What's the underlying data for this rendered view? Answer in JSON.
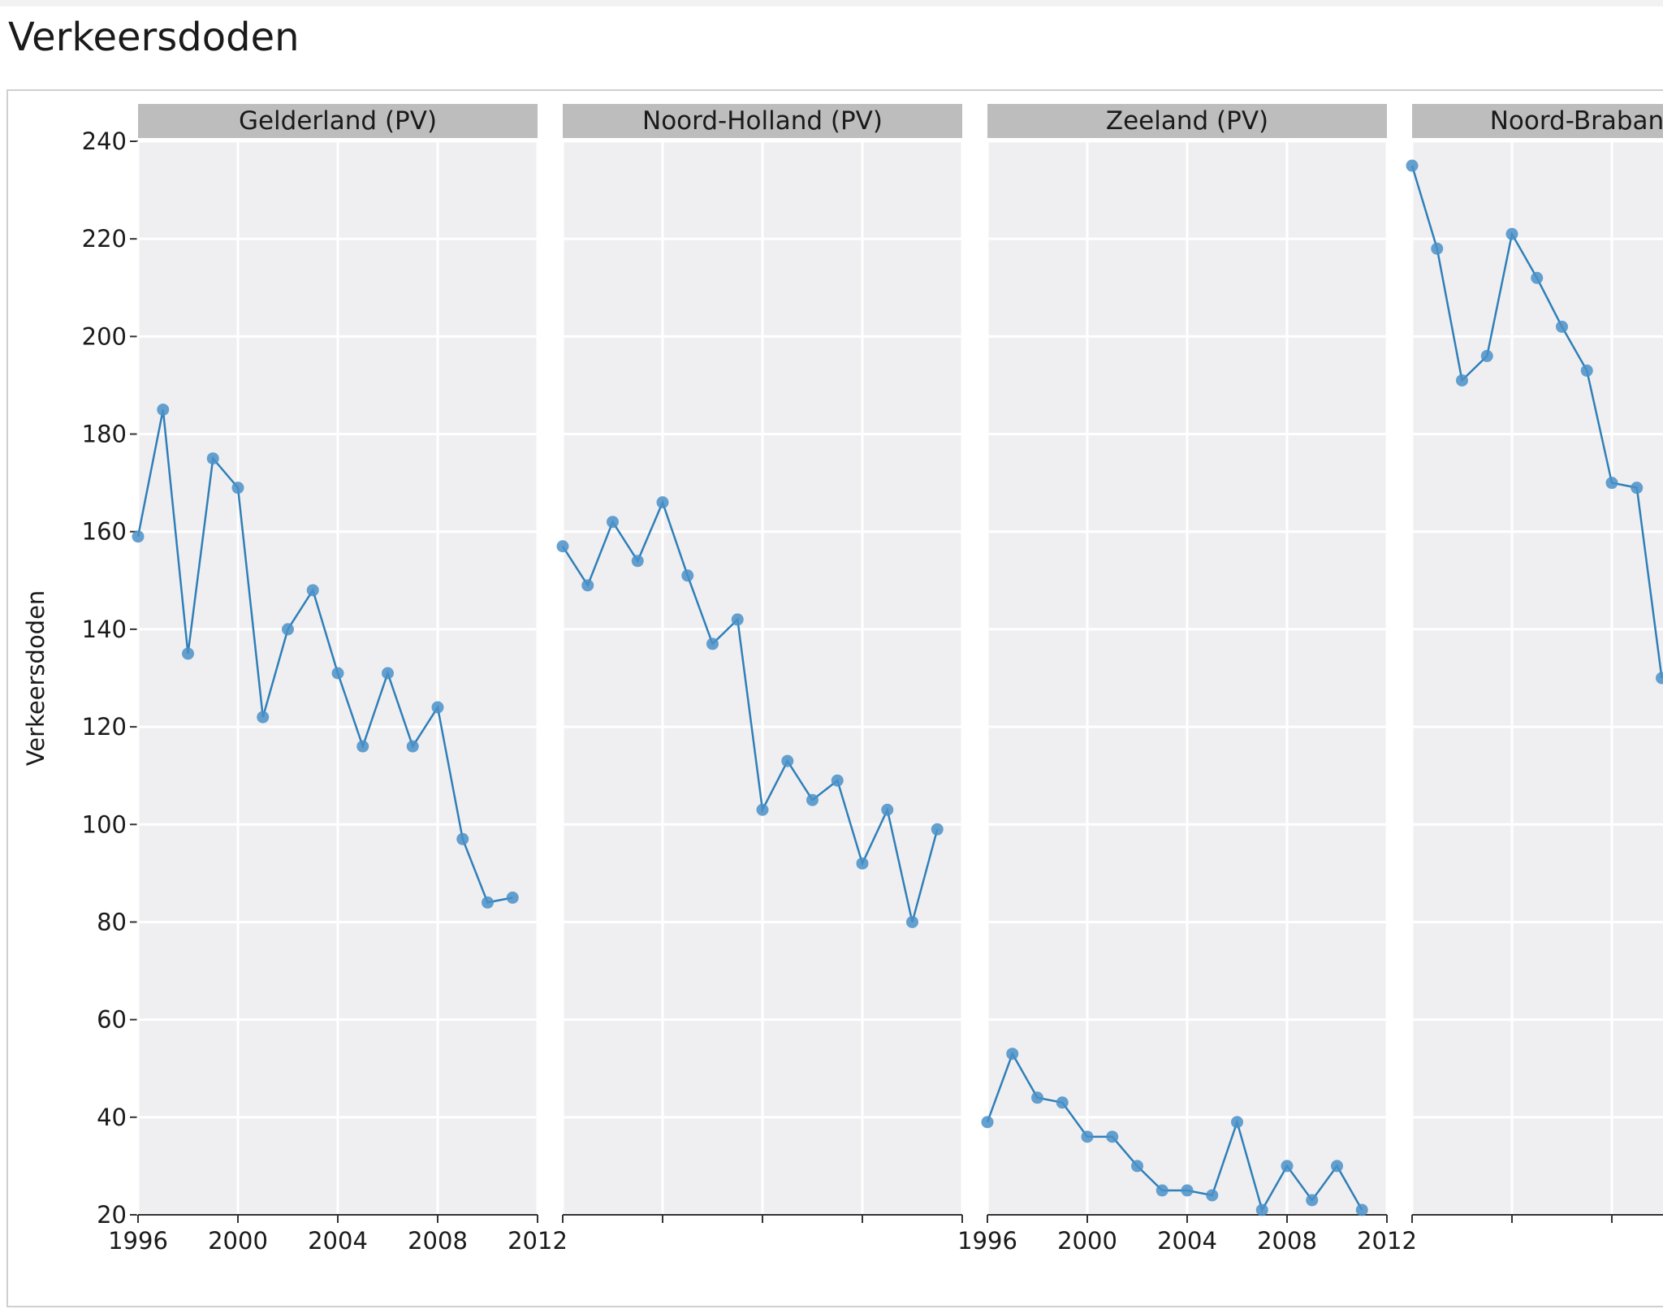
{
  "page": {
    "title": "Verkeersdoden"
  },
  "chart_data": {
    "type": "line",
    "ylabel": "Verkeersdoden",
    "xlabel": "",
    "ylim": [
      20,
      240
    ],
    "yticks": [
      20,
      40,
      60,
      80,
      100,
      120,
      140,
      160,
      180,
      200,
      220,
      240
    ],
    "xlim": [
      1996,
      2012
    ],
    "xticks": [
      1996,
      2000,
      2004,
      2008,
      2012
    ],
    "grid": true,
    "line_color": "#2f7fb8",
    "point_color": "#4a90c8",
    "panel_background": "#efeff1",
    "strip_background": "#bdbdbd",
    "panels": [
      {
        "name": "Gelderland (PV)",
        "x": [
          1996,
          1997,
          1998,
          1999,
          2000,
          2001,
          2002,
          2003,
          2004,
          2005,
          2006,
          2007,
          2008,
          2009,
          2010,
          2011
        ],
        "y": [
          159,
          185,
          135,
          175,
          169,
          122,
          140,
          148,
          131,
          116,
          131,
          116,
          124,
          97,
          84,
          85
        ],
        "x_tick_labels_visible": [
          "1996",
          "2000",
          "2004",
          "2008",
          "2012"
        ]
      },
      {
        "name": "Noord-Holland (PV)",
        "x": [
          1996,
          1997,
          1998,
          1999,
          2000,
          2001,
          2002,
          2003,
          2004,
          2005,
          2006,
          2007,
          2008,
          2009,
          2010,
          2011
        ],
        "y": [
          157,
          149,
          162,
          154,
          166,
          151,
          137,
          142,
          103,
          113,
          105,
          109,
          92,
          103,
          80,
          99
        ],
        "x_tick_labels_visible": []
      },
      {
        "name": "Zeeland (PV)",
        "x": [
          1996,
          1997,
          1998,
          1999,
          2000,
          2001,
          2002,
          2003,
          2004,
          2005,
          2006,
          2007,
          2008,
          2009,
          2010,
          2011
        ],
        "y": [
          39,
          53,
          44,
          43,
          36,
          36,
          30,
          25,
          25,
          24,
          39,
          21,
          30,
          23,
          30,
          21
        ],
        "x_tick_labels_visible": [
          "1996",
          "2000",
          "2004",
          "2008",
          "2012"
        ]
      },
      {
        "name": "Noord-Brabant (PV)",
        "x": [
          1996,
          1997,
          1998,
          1999,
          2000,
          2001,
          2002,
          2003,
          2004,
          2005,
          2006
        ],
        "y": [
          235,
          218,
          191,
          196,
          221,
          212,
          202,
          193,
          170,
          169,
          130
        ],
        "x_tick_labels_visible": []
      }
    ]
  }
}
